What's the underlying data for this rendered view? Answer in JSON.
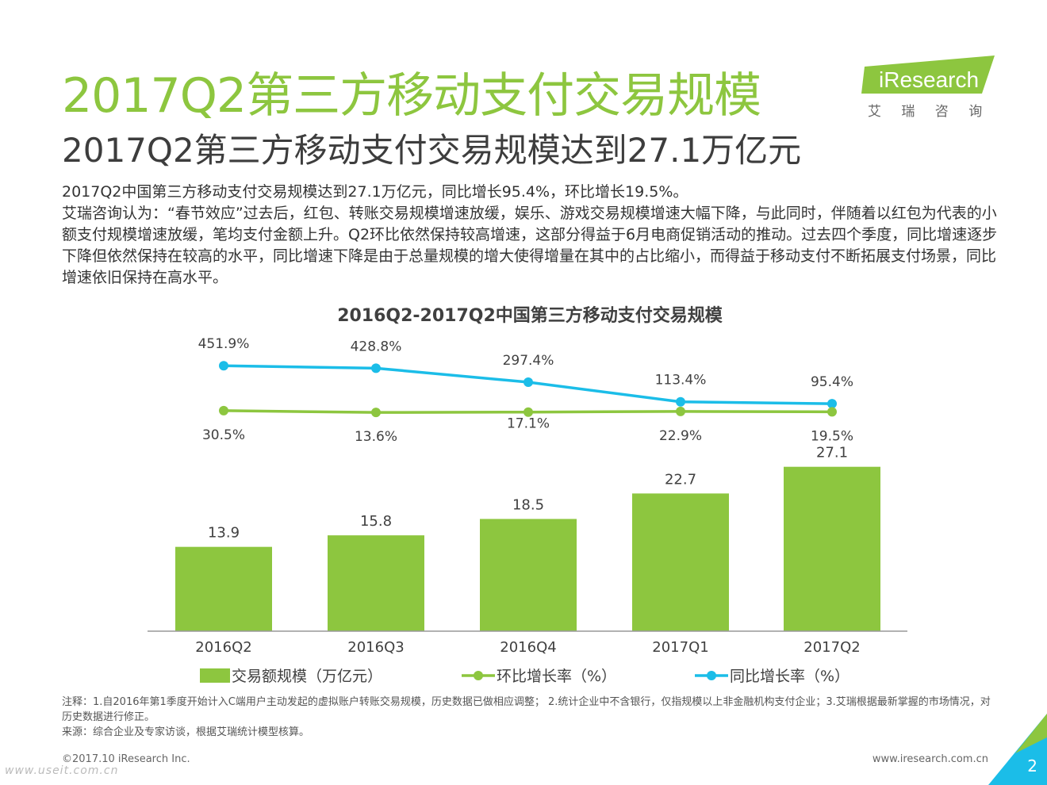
{
  "header": {
    "title": "2017Q2第三方移动支付交易规模",
    "subtitle": "2017Q2第三方移动支付交易规模达到27.1万亿元"
  },
  "logo": {
    "brand": "iResearch",
    "cn": "艾 瑞 咨 询"
  },
  "body": {
    "para1": "2017Q2中国第三方移动支付交易规模达到27.1万亿元，同比增长95.4%，环比增长19.5%。",
    "para2": "艾瑞咨询认为：“春节效应”过去后，红包、转账交易规模增速放缓，娱乐、游戏交易规模增速大幅下降，与此同时，伴随着以红包为代表的小额支付规模增速放缓，笔均支付金额上升。Q2环比依然保持较高增速，这部分得益于6月电商促销活动的推动。过去四个季度，同比增速逐步下降但依然保持在较高的水平，同比增速下降是由于总量规模的增大使得增量在其中的占比缩小，而得益于移动支付不断拓展支付场景，同比增速依旧保持在高水平。"
  },
  "colors": {
    "green": "#8dc63f",
    "blue": "#1bbde8",
    "bar": "#8dc63f",
    "text": "#404040"
  },
  "chart_data": {
    "type": "bar",
    "title": "2016Q2-2017Q2中国第三方移动支付交易规模",
    "categories": [
      "2016Q2",
      "2016Q3",
      "2016Q4",
      "2017Q1",
      "2017Q2"
    ],
    "series": [
      {
        "name": "交易额规模（万亿元）",
        "kind": "bar",
        "values": [
          13.9,
          15.8,
          18.5,
          22.7,
          27.1
        ],
        "labels": [
          "13.9",
          "15.8",
          "18.5",
          "22.7",
          "27.1"
        ]
      },
      {
        "name": "环比增长率（%）",
        "kind": "line",
        "values": [
          30.5,
          13.6,
          17.1,
          22.9,
          19.5
        ],
        "labels": [
          "30.5%",
          "13.6%",
          "17.1%",
          "22.9%",
          "19.5%"
        ]
      },
      {
        "name": "同比增长率（%）",
        "kind": "line",
        "values": [
          451.9,
          428.8,
          297.4,
          113.4,
          95.4
        ],
        "labels": [
          "451.9%",
          "428.8%",
          "297.4%",
          "113.4%",
          "95.4%"
        ]
      }
    ],
    "ylim_bar": [
      0,
      30
    ],
    "ylim_line": [
      0,
      500
    ]
  },
  "notes": {
    "note": "注释：1.自2016年第1季度开始计入C端用户主动发起的虚拟账户转账交易规模，历史数据已做相应调整； 2.统计企业中不含银行，仅指规模以上非金融机构支付企业；3.艾瑞根据最新掌握的市场情况，对历史数据进行修正。",
    "source": "来源：综合企业及专家访谈，根据艾瑞统计模型核算。"
  },
  "footer": {
    "copyright": "©2017.10 iResearch Inc.",
    "website": "www.iresearch.com.cn",
    "watermark": "www.useit.com.cn",
    "page": "2"
  }
}
